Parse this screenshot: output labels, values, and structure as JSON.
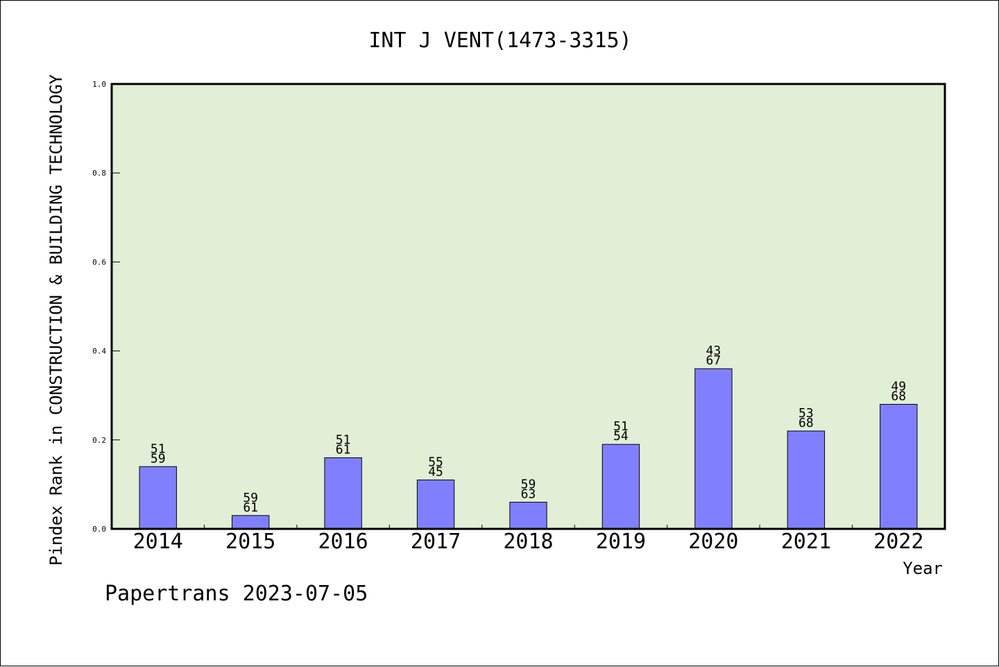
{
  "chart_data": {
    "type": "bar",
    "title": "INT J VENT(1473-3315)",
    "xlabel": "Year",
    "ylabel": "Pindex Rank in CONSTRUCTION & BUILDING TECHNOLOGY",
    "ylim": [
      0,
      1.0
    ],
    "yticks": [
      "0.0",
      "0.2",
      "0.4",
      "0.6",
      "0.8",
      "1.0"
    ],
    "categories": [
      "2014",
      "2015",
      "2016",
      "2017",
      "2018",
      "2019",
      "2020",
      "2021",
      "2022"
    ],
    "values": [
      0.14,
      0.03,
      0.16,
      0.11,
      0.06,
      0.19,
      0.36,
      0.22,
      0.28
    ],
    "labels_top": [
      "51",
      "59",
      "51",
      "55",
      "59",
      "51",
      "43",
      "53",
      "49"
    ],
    "labels_bottom": [
      "59",
      "61",
      "61",
      "45",
      "63",
      "54",
      "67",
      "68",
      "68"
    ],
    "grid": false,
    "plot_background": "#e2efd6",
    "bar_color": "#8080ff"
  },
  "footer": {
    "credit": "Papertrans 2023-07-05"
  }
}
